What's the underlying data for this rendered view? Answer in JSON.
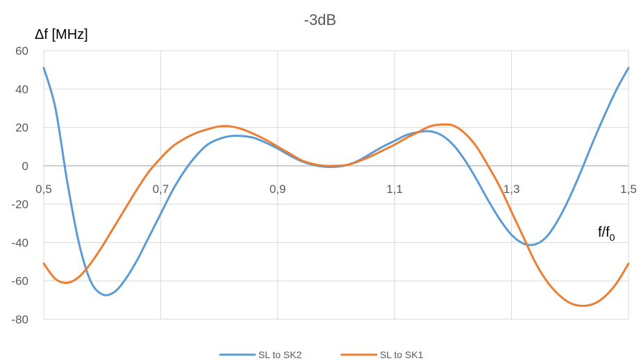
{
  "chart_data": {
    "type": "line",
    "title": "-3dB",
    "ylabel": "Δf [MHz]",
    "xlabel": {
      "main": "f/f",
      "subscript": "0"
    },
    "xlim": [
      0.5,
      1.5
    ],
    "ylim": [
      -80,
      60
    ],
    "x_ticks": [
      0.5,
      0.7,
      0.9,
      1.1,
      1.3,
      1.5
    ],
    "x_tick_labels": [
      "0,5",
      "0,7",
      "0,9",
      "1,1",
      "1,3",
      "1,5"
    ],
    "y_ticks": [
      60,
      40,
      20,
      0,
      -20,
      -40,
      -60,
      -80
    ],
    "y_tick_labels": [
      "60",
      "40",
      "20",
      "0",
      "-20",
      "-40",
      "-60",
      "-80"
    ],
    "grid": true,
    "legend_position": "bottom",
    "series": [
      {
        "name": "SL to SK2",
        "color": "#5B9BD5",
        "x": [
          0.5,
          0.52,
          0.54,
          0.56,
          0.58,
          0.6,
          0.62,
          0.64,
          0.66,
          0.68,
          0.7,
          0.72,
          0.74,
          0.76,
          0.78,
          0.8,
          0.82,
          0.84,
          0.86,
          0.88,
          0.9,
          0.92,
          0.94,
          0.96,
          0.98,
          1.0,
          1.02,
          1.04,
          1.06,
          1.08,
          1.1,
          1.12,
          1.14,
          1.16,
          1.18,
          1.2,
          1.22,
          1.24,
          1.26,
          1.28,
          1.3,
          1.32,
          1.34,
          1.36,
          1.38,
          1.4,
          1.42,
          1.44,
          1.46,
          1.48,
          1.5
        ],
        "y": [
          51,
          30,
          -8,
          -40,
          -60,
          -67,
          -66,
          -59,
          -49,
          -37,
          -25,
          -13,
          -3,
          5,
          11,
          14,
          15.5,
          15.5,
          14.5,
          12,
          9,
          5.5,
          2.5,
          0.5,
          -0.5,
          -0.5,
          0.5,
          3,
          6.5,
          10,
          13,
          16,
          17.5,
          18,
          16,
          11,
          3,
          -7,
          -18,
          -28,
          -36,
          -40.5,
          -41,
          -37,
          -28,
          -16,
          -2,
          13,
          27,
          40,
          51
        ]
      },
      {
        "name": "SL to SK1",
        "color": "#ED7D31",
        "x": [
          0.5,
          0.52,
          0.54,
          0.56,
          0.58,
          0.6,
          0.62,
          0.64,
          0.66,
          0.68,
          0.7,
          0.72,
          0.74,
          0.76,
          0.78,
          0.8,
          0.82,
          0.84,
          0.86,
          0.88,
          0.9,
          0.92,
          0.94,
          0.96,
          0.98,
          1.0,
          1.02,
          1.04,
          1.06,
          1.08,
          1.1,
          1.12,
          1.14,
          1.16,
          1.18,
          1.2,
          1.22,
          1.24,
          1.26,
          1.28,
          1.3,
          1.32,
          1.34,
          1.36,
          1.38,
          1.4,
          1.42,
          1.44,
          1.46,
          1.48,
          1.5
        ],
        "y": [
          -51,
          -59,
          -61,
          -58,
          -51,
          -42,
          -32,
          -22,
          -12,
          -3,
          4,
          10,
          14,
          17,
          19,
          20.5,
          20.5,
          19,
          16.5,
          13.5,
          10,
          6.5,
          3,
          1,
          0,
          0,
          0.5,
          2.5,
          5,
          8,
          11,
          14.5,
          17.5,
          20.5,
          21.5,
          21,
          17,
          10,
          0,
          -11,
          -24,
          -37,
          -50,
          -60,
          -67,
          -71.5,
          -73,
          -72,
          -68,
          -61,
          -51
        ]
      }
    ]
  }
}
